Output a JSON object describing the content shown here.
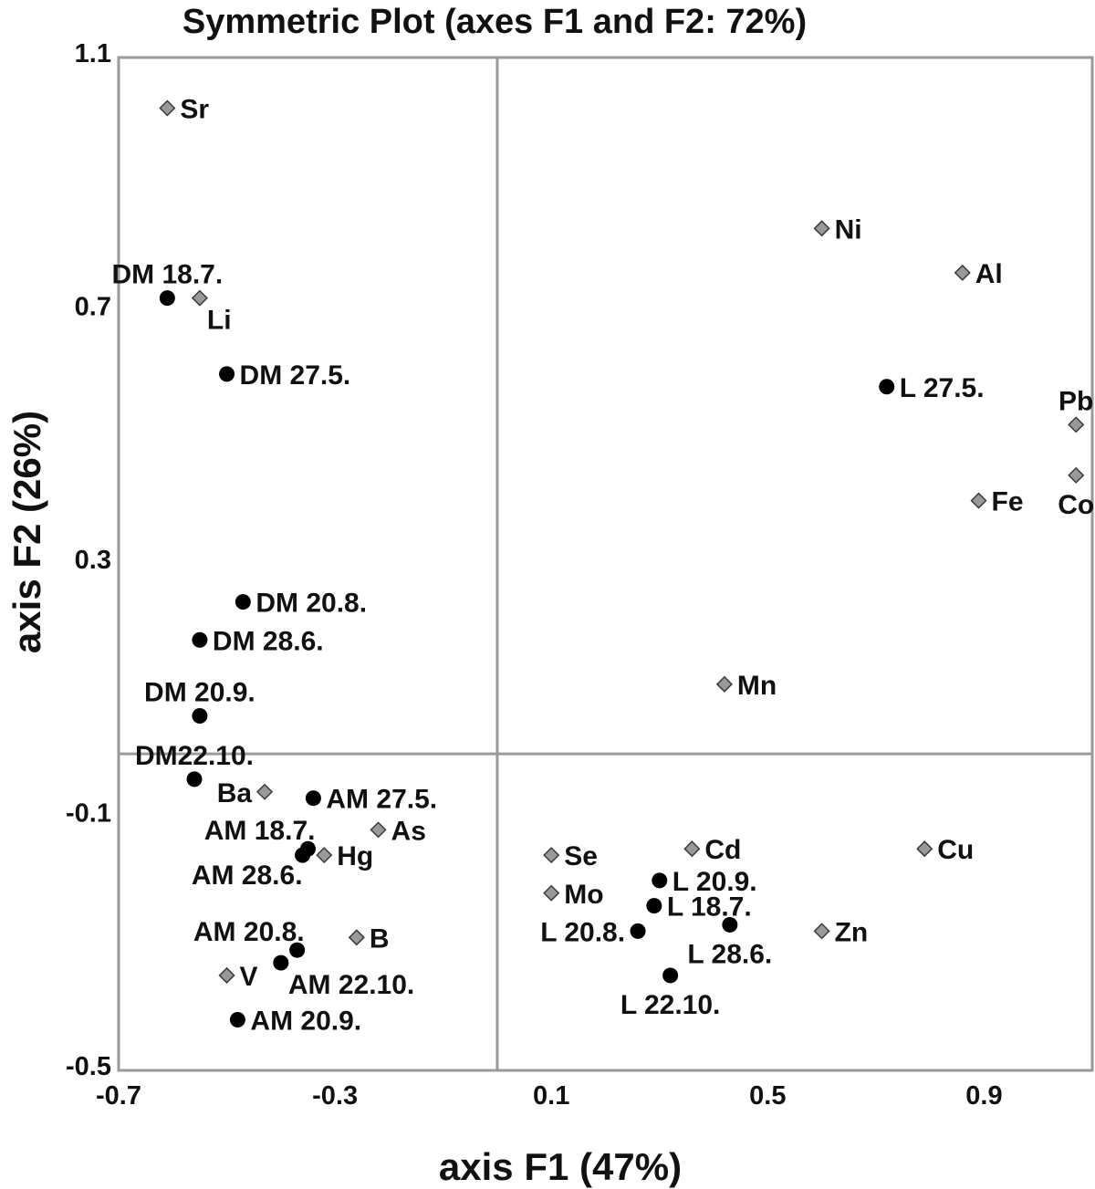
{
  "chart_data": {
    "type": "scatter",
    "title": "Symmetric Plot (axes F1 and F2: 72%)",
    "xlabel": "axis F1 (47%)",
    "ylabel": "axis F2 (26%)",
    "xlim": [
      -0.7,
      1.1
    ],
    "ylim": [
      -0.5,
      1.1
    ],
    "x_ticks": [
      -0.7,
      -0.3,
      0.1,
      0.5,
      0.9
    ],
    "x_tick_labels": [
      "-0.7",
      "-0.3",
      "0.1",
      "0.5",
      "0.9"
    ],
    "y_ticks": [
      1.1,
      0.7,
      0.3,
      -0.1,
      -0.5
    ],
    "y_tick_labels": [
      "1.1",
      "0.7",
      "0.3",
      "-0.1",
      "-0.5"
    ],
    "colors": {
      "variables": "#999999",
      "samples": "#000000",
      "frame": "#9a9a9a"
    },
    "series": [
      {
        "name": "samples",
        "marker": "circle",
        "points": [
          {
            "label": "DM 18.7.",
            "x": -0.61,
            "y": 0.72,
            "label_pos": "above"
          },
          {
            "label": "DM 27.5.",
            "x": -0.5,
            "y": 0.6,
            "label_pos": "right"
          },
          {
            "label": "DM 20.8.",
            "x": -0.47,
            "y": 0.24,
            "label_pos": "right"
          },
          {
            "label": "DM 28.6.",
            "x": -0.55,
            "y": 0.18,
            "label_pos": "right"
          },
          {
            "label": "DM 20.9.",
            "x": -0.55,
            "y": 0.06,
            "label_pos": "above"
          },
          {
            "label": "DM22.10.",
            "x": -0.56,
            "y": -0.04,
            "label_pos": "above"
          },
          {
            "label": "AM 27.5.",
            "x": -0.34,
            "y": -0.07,
            "label_pos": "right"
          },
          {
            "label": "AM 18.7.",
            "x": -0.35,
            "y": -0.15,
            "label_pos": "above-left"
          },
          {
            "label": "AM 28.6.",
            "x": -0.36,
            "y": -0.16,
            "label_pos": "below-left"
          },
          {
            "label": "AM 20.8.",
            "x": -0.37,
            "y": -0.31,
            "label_pos": "above-left"
          },
          {
            "label": "AM 22.10.",
            "x": -0.4,
            "y": -0.33,
            "label_pos": "below-right"
          },
          {
            "label": "AM 20.9.",
            "x": -0.48,
            "y": -0.42,
            "label_pos": "right"
          },
          {
            "label": "L 27.5.",
            "x": 0.72,
            "y": 0.58,
            "label_pos": "right"
          },
          {
            "label": "L 20.9.",
            "x": 0.3,
            "y": -0.2,
            "label_pos": "right"
          },
          {
            "label": "L 18.7.",
            "x": 0.29,
            "y": -0.24,
            "label_pos": "right"
          },
          {
            "label": "L 28.6.",
            "x": 0.43,
            "y": -0.27,
            "label_pos": "below"
          },
          {
            "label": "L 20.8.",
            "x": 0.26,
            "y": -0.28,
            "label_pos": "left"
          },
          {
            "label": "L 22.10.",
            "x": 0.32,
            "y": -0.35,
            "label_pos": "below"
          }
        ]
      },
      {
        "name": "variables",
        "marker": "diamond",
        "points": [
          {
            "label": "Sr",
            "x": -0.61,
            "y": 1.02,
            "label_pos": "right"
          },
          {
            "label": "Li",
            "x": -0.55,
            "y": 0.72,
            "label_pos": "below-right"
          },
          {
            "label": "Ba",
            "x": -0.43,
            "y": -0.06,
            "label_pos": "left"
          },
          {
            "label": "As",
            "x": -0.22,
            "y": -0.12,
            "label_pos": "right"
          },
          {
            "label": "Hg",
            "x": -0.32,
            "y": -0.16,
            "label_pos": "right"
          },
          {
            "label": "B",
            "x": -0.26,
            "y": -0.29,
            "label_pos": "right"
          },
          {
            "label": "V",
            "x": -0.5,
            "y": -0.35,
            "label_pos": "right"
          },
          {
            "label": "Se",
            "x": 0.1,
            "y": -0.16,
            "label_pos": "right"
          },
          {
            "label": "Mo",
            "x": 0.1,
            "y": -0.22,
            "label_pos": "right"
          },
          {
            "label": "Cd",
            "x": 0.36,
            "y": -0.15,
            "label_pos": "right"
          },
          {
            "label": "Cu",
            "x": 0.79,
            "y": -0.15,
            "label_pos": "right"
          },
          {
            "label": "Zn",
            "x": 0.6,
            "y": -0.28,
            "label_pos": "right"
          },
          {
            "label": "Ni",
            "x": 0.6,
            "y": 0.83,
            "label_pos": "right"
          },
          {
            "label": "Al",
            "x": 0.86,
            "y": 0.76,
            "label_pos": "right"
          },
          {
            "label": "Pb",
            "x": 1.07,
            "y": 0.52,
            "label_pos": "above"
          },
          {
            "label": "Co",
            "x": 1.07,
            "y": 0.44,
            "label_pos": "below"
          },
          {
            "label": "Fe",
            "x": 0.89,
            "y": 0.4,
            "label_pos": "right"
          },
          {
            "label": "Mn",
            "x": 0.42,
            "y": 0.11,
            "label_pos": "right"
          }
        ]
      }
    ]
  }
}
